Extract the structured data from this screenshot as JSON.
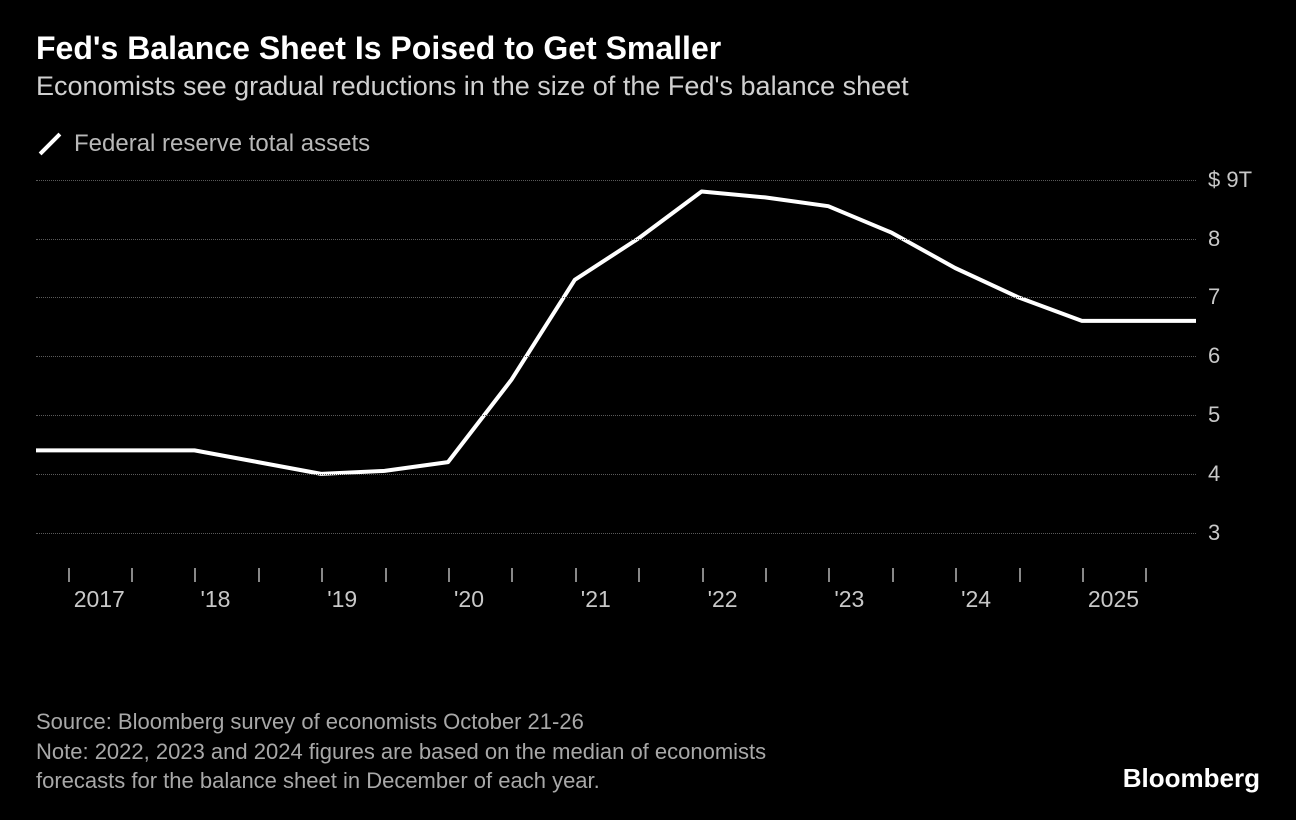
{
  "title": "Fed's Balance Sheet Is Poised to Get Smaller",
  "subtitle": "Economists see gradual reductions in the size of the Fed's balance sheet",
  "legend": {
    "label": "Federal reserve total assets"
  },
  "chart": {
    "type": "line",
    "background_color": "#000000",
    "line_color": "#ffffff",
    "line_width": 4,
    "grid_color": "#5a5a5a",
    "text_color": "#c8c8c8",
    "ymin": 2.4,
    "ymax": 9.2,
    "yticks": [
      3,
      4,
      5,
      6,
      7,
      8,
      9
    ],
    "ytick_labels": [
      "3",
      "4",
      "5",
      "6",
      "7",
      "8",
      "$ 9T"
    ],
    "xmin": 2016.75,
    "xmax": 2025.9,
    "xticks": [
      2017,
      2018,
      2019,
      2020,
      2021,
      2022,
      2023,
      2024,
      2025
    ],
    "xtick_labels": [
      "2017",
      "'18",
      "'19",
      "'20",
      "'21",
      "'22",
      "'23",
      "'24",
      "2025"
    ],
    "midyear_ticks": [
      2017.5,
      2018.5,
      2019.5,
      2020.5,
      2021.5,
      2022.5,
      2023.5,
      2024.5,
      2025.5
    ],
    "series": {
      "x": [
        2016.75,
        2017,
        2018,
        2018.5,
        2019,
        2019.5,
        2020,
        2020.5,
        2021,
        2021.5,
        2022,
        2022.5,
        2023,
        2023.5,
        2024,
        2024.5,
        2025,
        2025.9
      ],
      "y": [
        4.4,
        4.4,
        4.4,
        4.2,
        4.0,
        4.05,
        4.2,
        5.6,
        7.3,
        8.0,
        8.8,
        8.7,
        8.55,
        8.1,
        7.5,
        7.0,
        6.6,
        6.6
      ]
    }
  },
  "footer": {
    "source": "Source: Bloomberg survey of economists October 21-26",
    "note_line1": "Note: 2022, 2023 and 2024 figures are based on the median of economists",
    "note_line2": "forecasts for the balance sheet in December of each year."
  },
  "brand": "Bloomberg"
}
